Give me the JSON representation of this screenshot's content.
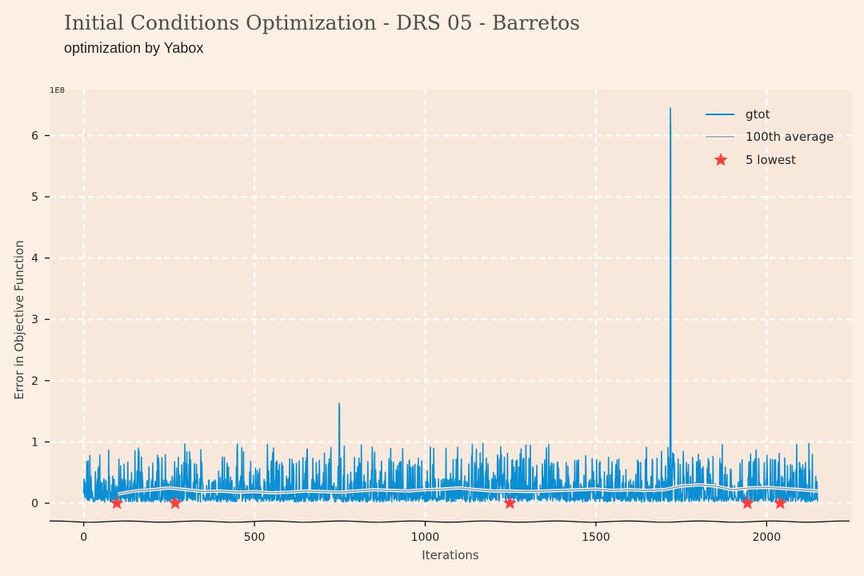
{
  "figure": {
    "title": "Initial Conditions Optimization - DRS 05 - Barretos",
    "subtitle": "optimization by Yabox"
  },
  "colors": {
    "background": "#fcf0e5",
    "plot_area": "#f8e8dc",
    "grid": "#ffffff",
    "gtot": "#0a8fd4",
    "average": "#999999",
    "lowest": "#ff3d3d",
    "text": "#222222"
  },
  "chart_data": {
    "type": "line",
    "xlabel": "Iterations",
    "ylabel": "Error in Objective Function",
    "y_offset_label": "1E8",
    "xlim": [
      -100,
      2250
    ],
    "ylim": [
      -0.3,
      6.75
    ],
    "x_ticks": [
      0,
      500,
      1000,
      1500,
      2000
    ],
    "x_tick_labels": [
      "0",
      "500",
      "1000",
      "1500",
      "2000"
    ],
    "y_ticks": [
      0,
      1,
      2,
      3,
      4,
      5,
      6
    ],
    "y_tick_labels": [
      "0",
      "1",
      "2",
      "3",
      "4",
      "5",
      "6"
    ],
    "grid": true,
    "legend": {
      "position": "top-right",
      "entries": [
        "gtot",
        "100th average",
        "5 lowest"
      ]
    },
    "n_iterations": 2150,
    "series": [
      {
        "name": "gtot",
        "style": "line",
        "description": "noisy error per iteration, mostly between 0 and 1 (x1e8)",
        "peaks": [
          {
            "x": 748,
            "y": 1.63
          },
          {
            "x": 1718,
            "y": 6.45
          }
        ]
      },
      {
        "name": "100th average",
        "style": "line",
        "x": [
          100,
          150,
          200,
          250,
          300,
          350,
          400,
          450,
          500,
          550,
          600,
          650,
          700,
          750,
          800,
          850,
          900,
          950,
          1000,
          1050,
          1100,
          1150,
          1200,
          1250,
          1300,
          1350,
          1400,
          1450,
          1500,
          1550,
          1600,
          1650,
          1700,
          1750,
          1800,
          1850,
          1900,
          1950,
          2000,
          2050,
          2100,
          2150
        ],
        "y": [
          0.15,
          0.2,
          0.22,
          0.25,
          0.22,
          0.19,
          0.2,
          0.18,
          0.19,
          0.17,
          0.18,
          0.2,
          0.19,
          0.18,
          0.2,
          0.22,
          0.21,
          0.2,
          0.22,
          0.23,
          0.25,
          0.22,
          0.2,
          0.2,
          0.19,
          0.2,
          0.21,
          0.22,
          0.23,
          0.21,
          0.22,
          0.21,
          0.22,
          0.28,
          0.3,
          0.28,
          0.22,
          0.25,
          0.26,
          0.24,
          0.22,
          0.2
        ]
      },
      {
        "name": "5 lowest",
        "style": "scatter",
        "marker": "star",
        "x": [
          97,
          268,
          1248,
          1944,
          2040
        ],
        "y": [
          0.0,
          0.0,
          0.0,
          0.0,
          0.0
        ]
      }
    ]
  }
}
